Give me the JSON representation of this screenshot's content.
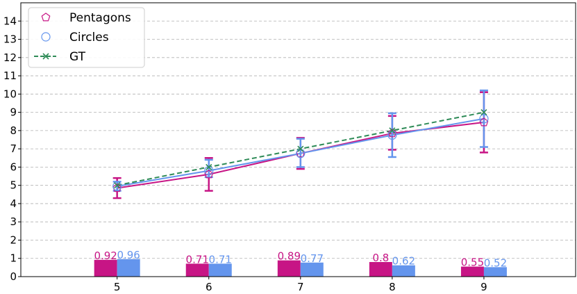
{
  "chart_data": {
    "type": "line",
    "x": [
      5,
      6,
      7,
      8,
      9
    ],
    "xlim": [
      3.95,
      10.0
    ],
    "ylim": [
      0,
      15
    ],
    "yticks": [
      0,
      1,
      2,
      3,
      4,
      5,
      6,
      7,
      8,
      9,
      10,
      11,
      12,
      13,
      14
    ],
    "grid": "horizontal dashed",
    "legend_position": "top-left",
    "series": [
      {
        "name": "Pentagons",
        "color": "#c71585",
        "marker": "pentagon",
        "values": [
          4.85,
          5.6,
          6.75,
          7.85,
          8.45
        ],
        "error_low": [
          4.3,
          4.7,
          5.9,
          6.95,
          6.8
        ],
        "error_high": [
          5.4,
          6.5,
          7.6,
          8.8,
          10.1
        ]
      },
      {
        "name": "Circles",
        "color": "#6495ed",
        "marker": "circle",
        "values": [
          4.95,
          5.8,
          6.75,
          7.75,
          8.65
        ],
        "error_low": [
          4.7,
          5.45,
          6.0,
          6.55,
          7.1
        ],
        "error_high": [
          5.2,
          6.4,
          7.55,
          8.95,
          10.2
        ]
      },
      {
        "name": "GT",
        "color": "#2e8b57",
        "marker": "x",
        "style": "dashed",
        "values": [
          5,
          6,
          7,
          8,
          9
        ]
      }
    ],
    "bars": [
      {
        "series": "Pentagons",
        "color": "#c71585",
        "values": [
          0.92,
          0.71,
          0.89,
          0.8,
          0.55
        ],
        "labels": [
          "0.92",
          "0.71",
          "0.89",
          "0.8",
          "0.55"
        ]
      },
      {
        "series": "Circles",
        "color": "#6495ed",
        "values": [
          0.96,
          0.71,
          0.77,
          0.62,
          0.52
        ],
        "labels": [
          "0.96",
          "0.71",
          "0.77",
          "0.62",
          "0.52"
        ]
      }
    ]
  }
}
